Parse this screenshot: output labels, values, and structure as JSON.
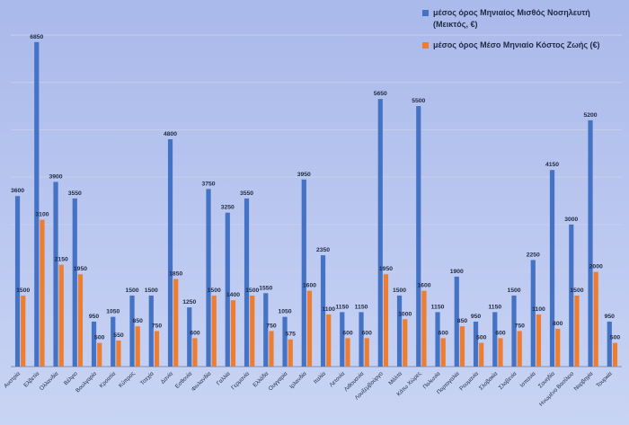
{
  "chart_data": {
    "type": "bar",
    "title": "",
    "xlabel": "",
    "ylabel": "",
    "ylim": [
      0,
      7000
    ],
    "grid": true,
    "legend_position": "top-right",
    "categories": [
      "Αυστρία",
      "Ελβετία",
      "Ολλανδία",
      "Βέλγιο",
      "Βουλγαρία",
      "Κροατία",
      "Κύπρος",
      "Τσεχία",
      "Δανία",
      "Εσθονία",
      "Φινλανδία",
      "Γαλλία",
      "Γερμανία",
      "Ελλάδα",
      "Ουγγαρία",
      "Ιρλανδία",
      "Ιταλία",
      "Λετονία",
      "Λιθουανία",
      "Λουξεμβούργο",
      "Μάλτα",
      "Κάτω Χώρες",
      "Πολωνία",
      "Πορτογαλία",
      "Ρουμανία",
      "Σλοβακία",
      "Σλοβενία",
      "Ισπανία",
      "Σουηδία",
      "Ηνωμένο Βασίλειο",
      "Νορβηγία",
      "Τουρκία"
    ],
    "series": [
      {
        "name": "μέσος όρος Μηνιαίος Μισθός Νοσηλευτή (Μεικτός, €)",
        "color": "#4472c4",
        "values": [
          3600,
          6850,
          3900,
          3550,
          950,
          1050,
          1500,
          1500,
          4800,
          1250,
          3750,
          3250,
          3550,
          1550,
          1050,
          3950,
          2350,
          1150,
          1150,
          5650,
          1500,
          5500,
          1150,
          1900,
          950,
          1150,
          1500,
          2250,
          4150,
          3000,
          5200,
          950
        ]
      },
      {
        "name": "μέσος όρος Μέσο Μηνιαίο Κόστος Ζωής (€)",
        "color": "#ed7d31",
        "values": [
          1500,
          3100,
          2150,
          1950,
          500,
          550,
          850,
          750,
          1850,
          600,
          1500,
          1400,
          1500,
          750,
          575,
          1600,
          1100,
          600,
          600,
          1950,
          1000,
          1600,
          600,
          850,
          500,
          600,
          750,
          1100,
          800,
          1500,
          2000,
          500
        ]
      }
    ]
  }
}
